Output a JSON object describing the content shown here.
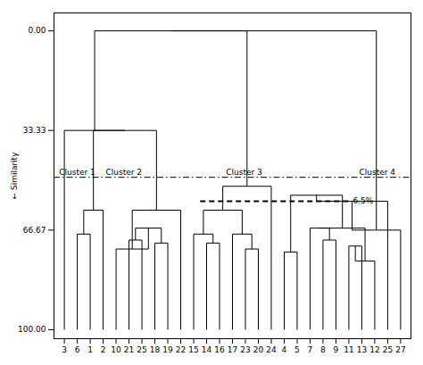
{
  "chart_data": {
    "type": "dendrogram",
    "categories": [
      "3",
      "6",
      "1",
      "2",
      "10",
      "21",
      "25",
      "18",
      "19",
      "22",
      "15",
      "14",
      "16",
      "17",
      "23",
      "20",
      "24",
      "4",
      "5",
      "7",
      "8",
      "9",
      "11",
      "13",
      "12",
      "25",
      "27"
    ],
    "ylabel": "Similarity",
    "ylim": [
      103,
      -6
    ],
    "yticks": [
      {
        "value": 0.0,
        "label": "0.00"
      },
      {
        "value": 33.33,
        "label": "33.33"
      },
      {
        "value": 66.67,
        "label": "66.67"
      },
      {
        "value": 100.0,
        "label": "100.00"
      }
    ],
    "leaf_height": 100,
    "merges": [
      {
        "left": {
          "leaf": 1
        },
        "right": {
          "leaf": 2
        },
        "height": 68.0
      },
      {
        "left": {
          "merge": 0
        },
        "right": {
          "leaf": 3
        },
        "height": 60.0
      },
      {
        "left": {
          "leaf": 5
        },
        "right": {
          "leaf": 6
        },
        "height": 70.0
      },
      {
        "left": {
          "leaf": 7
        },
        "right": {
          "leaf": 8
        },
        "height": 71.0
      },
      {
        "left": {
          "merge": 2
        },
        "right": {
          "merge": 3
        },
        "height": 66.0
      },
      {
        "left": {
          "leaf": 4
        },
        "right": {
          "merge": 4
        },
        "height": 73.0
      },
      {
        "left": {
          "merge": 5
        },
        "right": {
          "leaf": 9
        },
        "height": 60.0
      },
      {
        "left": {
          "merge": 1
        },
        "right": {
          "merge": 6
        },
        "height": 33.33
      },
      {
        "left": {
          "leaf": 0
        },
        "right": {
          "merge": 7
        },
        "height": 33.33
      },
      {
        "left": {
          "leaf": 11
        },
        "right": {
          "leaf": 12
        },
        "height": 71.0
      },
      {
        "left": {
          "leaf": 10
        },
        "right": {
          "merge": 9
        },
        "height": 68.0
      },
      {
        "left": {
          "leaf": 14
        },
        "right": {
          "leaf": 15
        },
        "height": 73.0
      },
      {
        "left": {
          "leaf": 13
        },
        "right": {
          "merge": 11
        },
        "height": 68.0
      },
      {
        "left": {
          "merge": 10
        },
        "right": {
          "merge": 12
        },
        "height": 60.0
      },
      {
        "left": {
          "merge": 13
        },
        "right": {
          "leaf": 16
        },
        "height": 52.0
      },
      {
        "left": {
          "merge": 8
        },
        "right": {
          "merge": 14
        },
        "height": 0.0
      },
      {
        "left": {
          "leaf": 17
        },
        "right": {
          "leaf": 18
        },
        "height": 74.0
      },
      {
        "left": {
          "leaf": 20
        },
        "right": {
          "leaf": 21
        },
        "height": 70.0
      },
      {
        "left": {
          "leaf": 19
        },
        "right": {
          "merge": 17
        },
        "height": 66.0
      },
      {
        "left": {
          "leaf": 22
        },
        "right": {
          "leaf": 23
        },
        "height": 72.0
      },
      {
        "left": {
          "leaf": 24
        },
        "right": {
          "merge": 19
        },
        "height": 77.0
      },
      {
        "left": {
          "merge": 18
        },
        "right": {
          "merge": 20
        },
        "height": 66.0
      },
      {
        "left": {
          "merge": 16
        },
        "right": {
          "merge": 21
        },
        "height": 55.0
      },
      {
        "left": {
          "merge": 22
        },
        "right": {
          "leaf": 25
        },
        "height": 57.0
      },
      {
        "left": {
          "merge": 23
        },
        "right": {
          "leaf": 26
        },
        "height": 66.67
      },
      {
        "left": {
          "merge": 15
        },
        "right": {
          "merge": 24
        },
        "height": 0.0
      }
    ],
    "cluster_line_y": 49.0,
    "dash_line": {
      "y": 57.0,
      "x_start": 10.5,
      "x_end": 22.0
    },
    "annotation": {
      "text": "6.5%",
      "x": 22.1,
      "y": 57.0
    },
    "cluster_labels": [
      {
        "text": "Cluster 1",
        "x": -0.4
      },
      {
        "text": "Cluster 2",
        "x": 3.2
      },
      {
        "text": "Cluster 3",
        "x": 12.5
      },
      {
        "text": "Cluster 4",
        "x": 22.8
      }
    ]
  }
}
